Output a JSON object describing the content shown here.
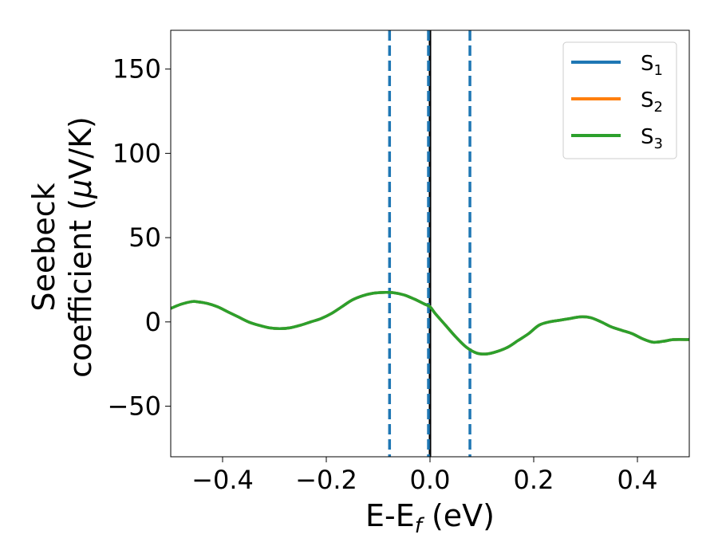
{
  "chart_data": {
    "type": "line",
    "xlabel": "E-E",
    "xlabel_sub": "f",
    "xlabel_unit": " (eV)",
    "ylabel_line1": "Seebeck",
    "ylabel_line2": "coefficient  (",
    "ylabel_mu": "μ",
    "ylabel_unit": "V/K)",
    "xlim": [
      -0.5,
      0.5
    ],
    "ylim": [
      -80,
      173
    ],
    "xticks": [
      -0.4,
      -0.2,
      0.0,
      0.2,
      0.4
    ],
    "xtick_labels": [
      "−0.4",
      "−0.2",
      "0.0",
      "0.2",
      "0.4"
    ],
    "yticks": [
      -50,
      0,
      50,
      100,
      150
    ],
    "ytick_labels": [
      "−50",
      "0",
      "50",
      "100",
      "150"
    ],
    "grid": false,
    "legend_position": "top-right",
    "x": [
      -0.5,
      -0.48,
      -0.46,
      -0.45,
      -0.43,
      -0.41,
      -0.39,
      -0.37,
      -0.35,
      -0.33,
      -0.31,
      -0.29,
      -0.27,
      -0.25,
      -0.23,
      -0.21,
      -0.19,
      -0.17,
      -0.15,
      -0.13,
      -0.11,
      -0.09,
      -0.07,
      -0.05,
      -0.03,
      -0.01,
      0.0,
      0.01,
      0.03,
      0.05,
      0.07,
      0.09,
      0.11,
      0.13,
      0.15,
      0.17,
      0.19,
      0.21,
      0.23,
      0.25,
      0.27,
      0.29,
      0.31,
      0.33,
      0.35,
      0.37,
      0.39,
      0.41,
      0.43,
      0.45,
      0.47,
      0.5
    ],
    "series": [
      {
        "name": "S",
        "subscript": "1",
        "color": "#1f77b4",
        "values": [
          8,
          10.5,
          12,
          12,
          11,
          9,
          6,
          3,
          0,
          -2,
          -3.5,
          -4,
          -3.5,
          -2,
          0,
          2,
          5,
          9,
          13,
          15.5,
          17,
          17.5,
          17.3,
          16,
          13.5,
          10.5,
          9,
          5,
          -2,
          -9,
          -15,
          -18.5,
          -19,
          -17.5,
          -15,
          -11,
          -7,
          -2,
          0,
          1,
          2,
          3,
          2.5,
          0,
          -3,
          -5,
          -7,
          -10,
          -12,
          -11.5,
          -10.5,
          -10.5
        ]
      },
      {
        "name": "S",
        "subscript": "2",
        "color": "#ff7f0e",
        "values": [
          8,
          10.5,
          12,
          12,
          11,
          9,
          6,
          3,
          0,
          -2,
          -3.5,
          -4,
          -3.5,
          -2,
          0,
          2,
          5,
          9,
          13,
          15.5,
          17,
          17.5,
          17.3,
          16,
          13.5,
          10.5,
          9,
          5,
          -2,
          -9,
          -15,
          -18.5,
          -19,
          -17.5,
          -15,
          -11,
          -7,
          -2,
          0,
          1,
          2,
          3,
          2.5,
          0,
          -3,
          -5,
          -7,
          -10,
          -12,
          -11.5,
          -10.5,
          -10.5
        ]
      },
      {
        "name": "S",
        "subscript": "3",
        "color": "#2ca02c",
        "values": [
          8,
          10.5,
          12,
          12,
          11,
          9,
          6,
          3,
          0,
          -2,
          -3.5,
          -4,
          -3.5,
          -2,
          0,
          2,
          5,
          9,
          13,
          15.5,
          17,
          17.5,
          17.3,
          16,
          13.5,
          10.5,
          9,
          5,
          -2,
          -9,
          -15,
          -18.5,
          -19,
          -17.5,
          -15,
          -11,
          -7,
          -2,
          0,
          1,
          2,
          3,
          2.5,
          0,
          -3,
          -5,
          -7,
          -10,
          -12,
          -11.5,
          -10.5,
          -10.5
        ]
      }
    ],
    "vlines": [
      {
        "x": -0.078,
        "style": "dashed",
        "color": "#1f77b4"
      },
      {
        "x": 0.0,
        "style": "solid",
        "color": "#000000"
      },
      {
        "x": -0.003,
        "style": "dashed",
        "color": "#1f77b4"
      },
      {
        "x": 0.077,
        "style": "dashed",
        "color": "#1f77b4"
      }
    ]
  }
}
